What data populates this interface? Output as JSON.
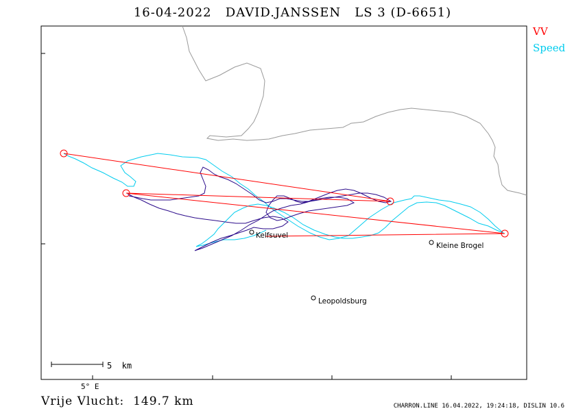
{
  "header": {
    "title": "16-04-2022   DAVID.JANSSEN   LS 3 (D-6651)"
  },
  "legend": {
    "vv_label": "VV",
    "speed_label": "Speed",
    "vv_color": "#ff0000",
    "speed_color": "#00ccee",
    "track_color": "#2a0a8a",
    "border_color": "#999999"
  },
  "map": {
    "places": [
      {
        "name": "Kelfsuvel"
      },
      {
        "name": "Kleine Brogel"
      },
      {
        "name": "Leopoldsburg"
      }
    ],
    "scale_label": "5  km",
    "longitude_label": "5° E"
  },
  "footer": {
    "distance_label": "Vrije Vlucht:  149.7 km",
    "source_label": "CHARRON.LINE 16.04.2022, 19:24:18, DISLIN 10.6"
  }
}
